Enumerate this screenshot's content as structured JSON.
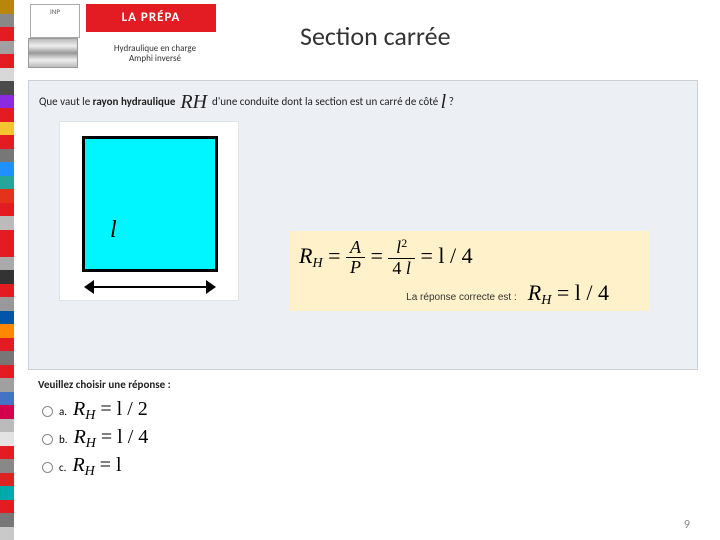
{
  "stripe_colors": [
    "#b8860b",
    "#888888",
    "#e31b23",
    "#a0a0a0",
    "#e31b23",
    "#d8d8d8",
    "#4b4b4b",
    "#8a2be2",
    "#e31b23",
    "#f4c430",
    "#e31b23",
    "#777",
    "#1e90ff",
    "#26a69a",
    "#e3341b",
    "#e31b23",
    "#bbb",
    "#e31b23",
    "#e31b23",
    "#aaa",
    "#333",
    "#e31b23",
    "#999",
    "#05a",
    "#ff8800",
    "#e31b23",
    "#777",
    "#e31b23",
    "#a0a0a0",
    "#4472c4",
    "#d4004b",
    "#bbb",
    "#e3e3e3",
    "#e31b23",
    "#888",
    "#d22",
    "#0aa",
    "#e31b23",
    "#777",
    "#c9c9c9"
  ],
  "logo1": "INP",
  "logo2": "LA PRÉPA",
  "header_sub1": "Hydraulique en charge",
  "header_sub2": "Amphi inversé",
  "title": "Section carrée",
  "question_prefix": "Que vaut le ",
  "question_bold": "rayon hydraulique",
  "question_rh": "R",
  "question_rh_sub": "H",
  "question_after": " d'une conduite dont la section est un carré de côté ",
  "question_l": "l",
  "question_end": " ?",
  "ell": "l",
  "formula_line1_left": "R",
  "formula_sub_h": "H",
  "formula_eq": " = ",
  "formula_Atop": "A",
  "formula_Abot": "P",
  "formula_eq2": " = ",
  "formula_ltop": "l",
  "formula_lsup": "2",
  "formula_lbot_a": "4",
  "formula_lbot_b": " l",
  "formula_eq3": " = l / 4",
  "formula_correct_label": "La réponse correcte est :",
  "formula_correct_eq": "R",
  "formula_correct_rest": " = l / 4",
  "choices_label": "Veuillez choisir une réponse :",
  "choices": [
    {
      "letter": "a.",
      "eq": "R",
      "rest": " = l / 2"
    },
    {
      "letter": "b.",
      "eq": "R",
      "rest": " = l / 4"
    },
    {
      "letter": "c.",
      "eq": "R",
      "rest": " = l"
    }
  ],
  "pagenum": "9"
}
